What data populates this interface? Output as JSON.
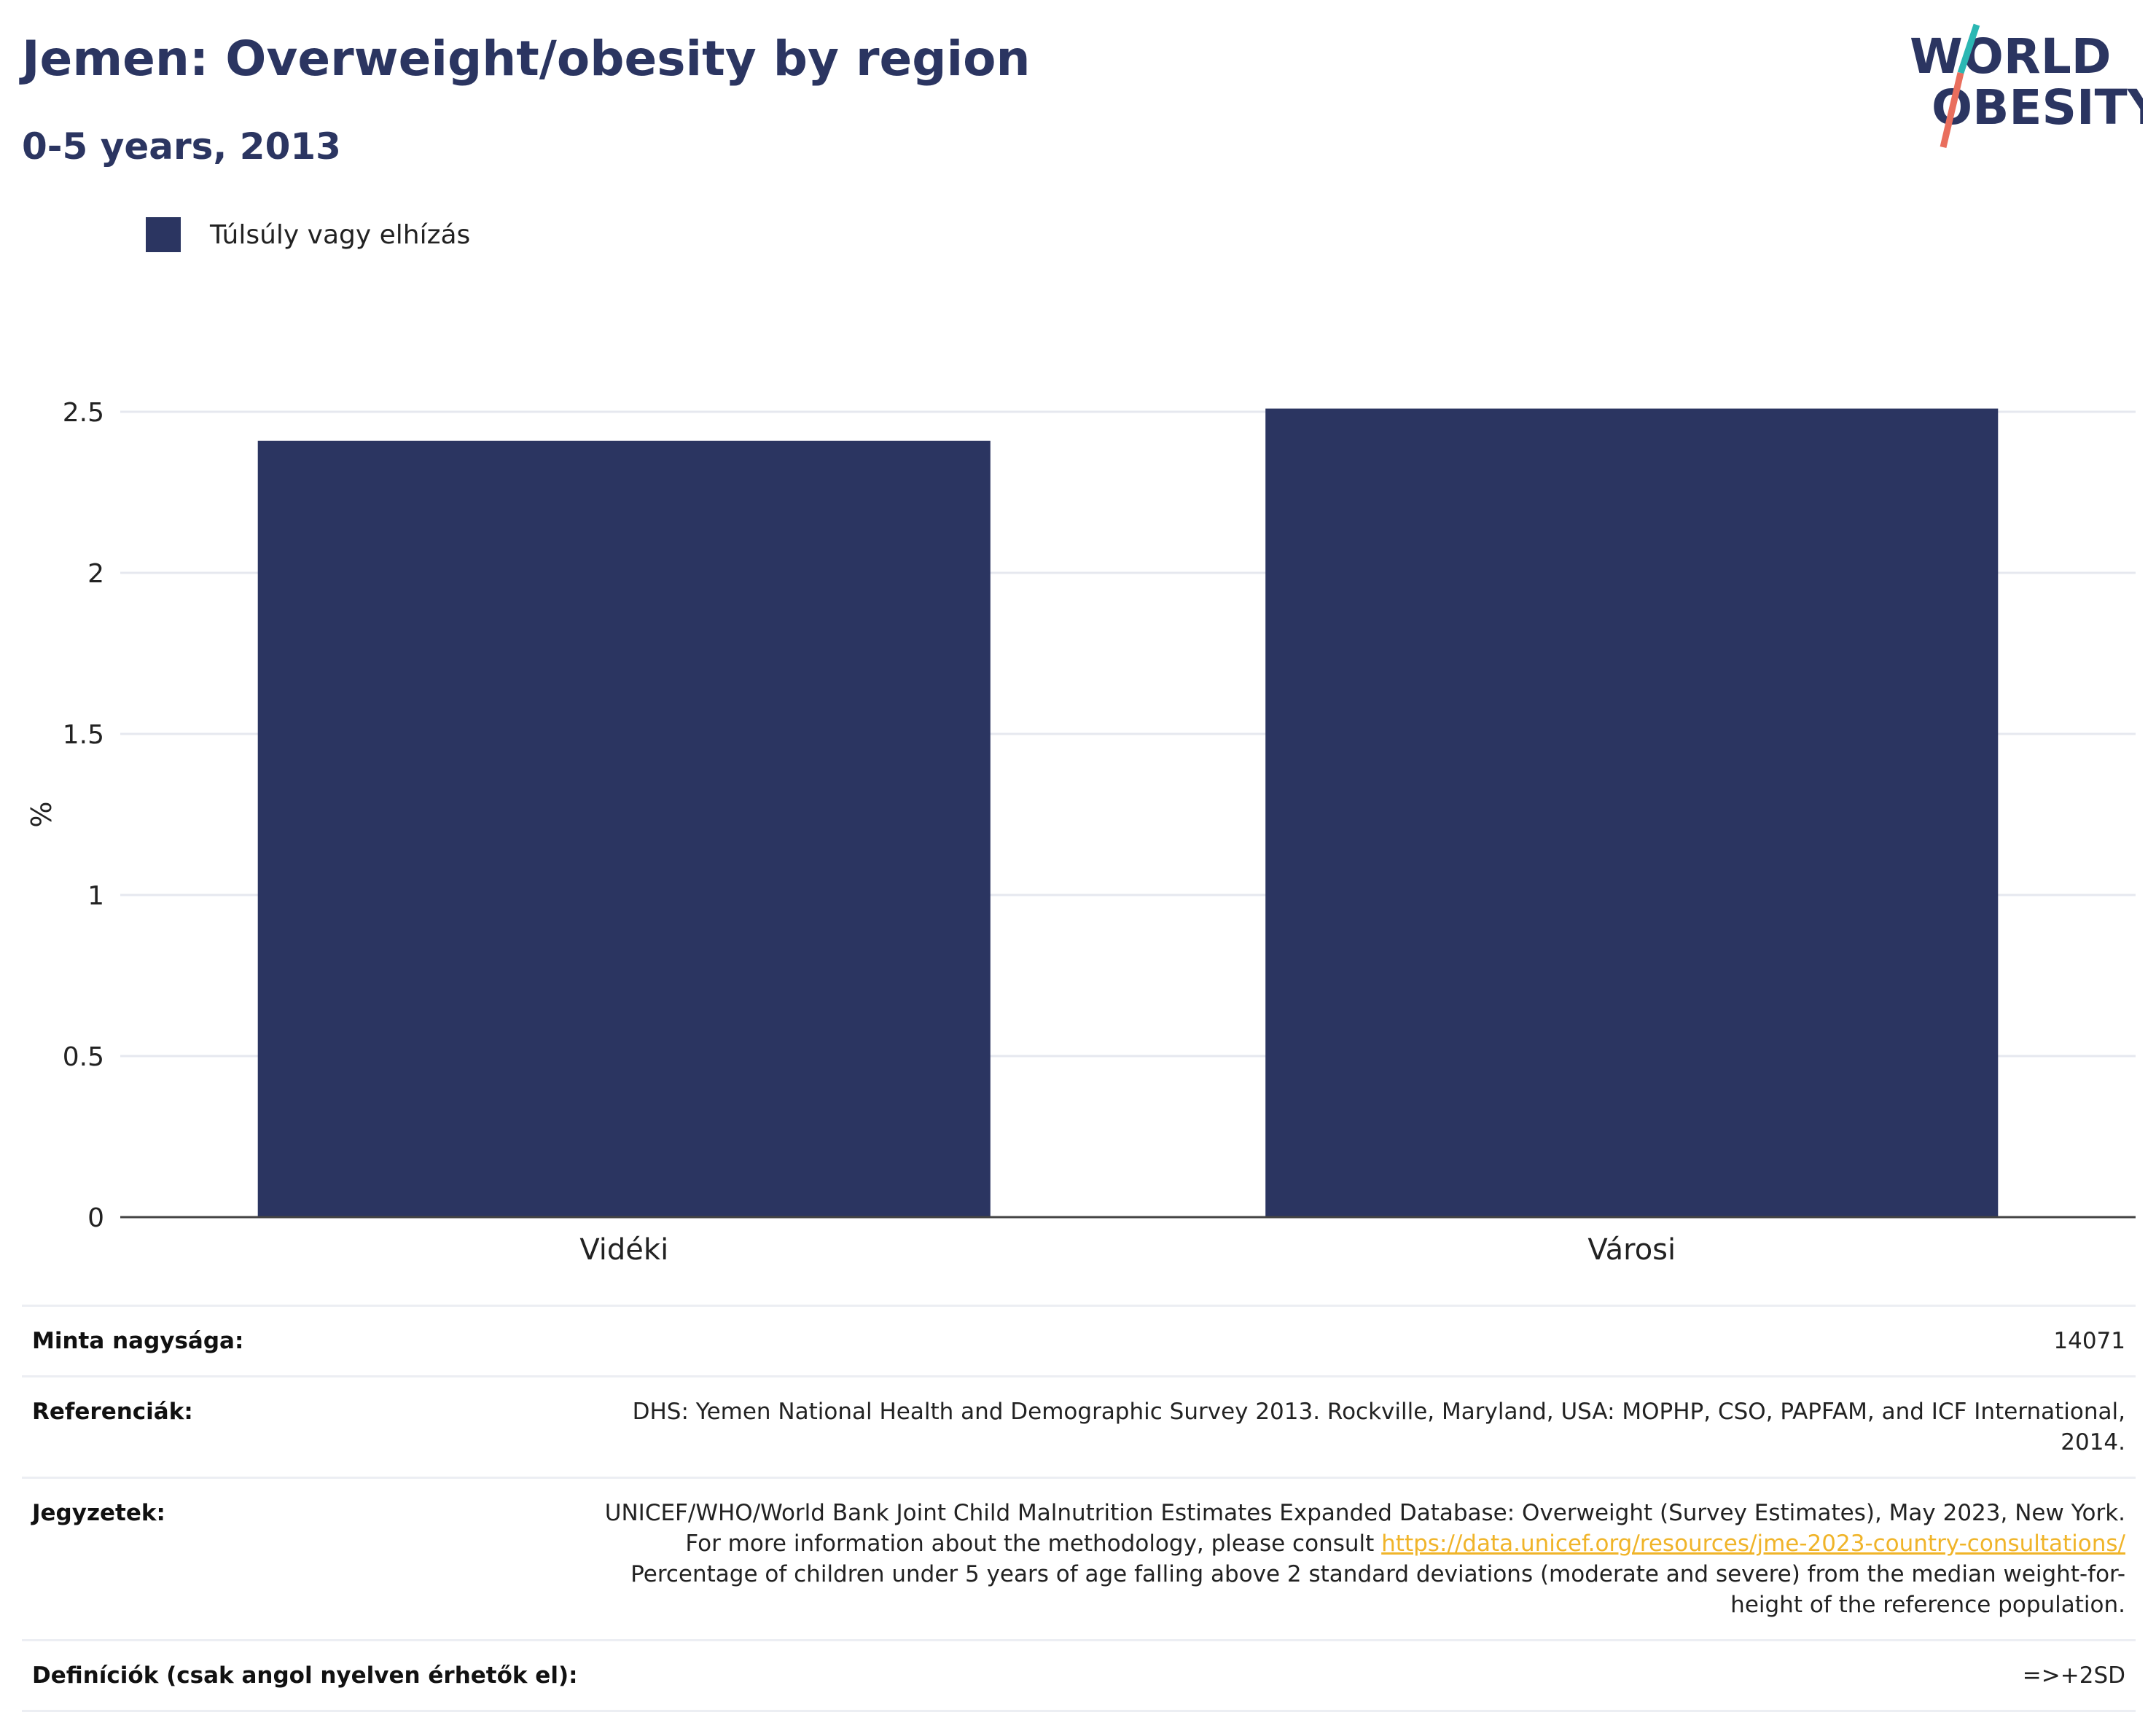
{
  "header": {
    "title": "Jemen: Overweight/obesity by region",
    "subtitle": "0-5 years, 2013"
  },
  "logo": {
    "line1": "WORLD",
    "line2": "OBESITY"
  },
  "colors": {
    "bar": "#2b3561",
    "title": "#2b3561",
    "grid": "#e6e8ef",
    "axis": "#444444",
    "link": "#f0b429"
  },
  "chart_data": {
    "type": "bar",
    "categories": [
      "Vidéki",
      "Városi"
    ],
    "series": [
      {
        "name": "Túlsúly vagy elhízás",
        "values": [
          2.41,
          2.51
        ]
      }
    ],
    "ylabel": "%",
    "xlabel": "",
    "ylim": [
      0,
      2.5
    ],
    "yticks": [
      "0",
      "0.5",
      "1",
      "1.5",
      "2",
      "2.5"
    ],
    "ytick_values": [
      0,
      0.5,
      1,
      1.5,
      2,
      2.5
    ],
    "grid": true,
    "legend": "top-left"
  },
  "meta": {
    "sample_label": "Minta nagysága:",
    "sample_value": "14071",
    "references_label": "Referenciák:",
    "references_value": "DHS: Yemen National Health and Demographic Survey 2013. Rockville, Maryland, USA: MOPHP, CSO, PAPFAM, and ICF International, 2014.",
    "notes_label": "Jegyzetek:",
    "notes_text1": "UNICEF/WHO/World Bank Joint Child Malnutrition Estimates Expanded Database: Overweight (Survey Estimates), May 2023, New York. For more information about the methodology, please consult",
    "notes_link": "https://data.unicef.org/resources/jme-2023-country-consultations/",
    "notes_text2": "Percentage of children under 5 years of age falling above 2 standard deviations (moderate and severe) from the median weight-for-height of the reference population.",
    "definitions_label": "Definíciók (csak angol nyelven érhetők el):",
    "definitions_value": "=>+2SD"
  }
}
